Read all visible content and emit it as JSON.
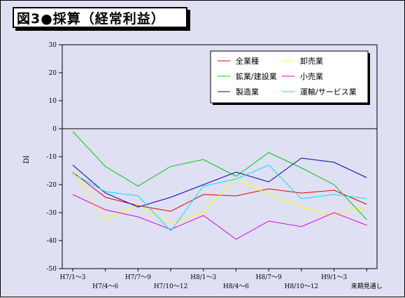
{
  "title": "図3●採算（経常利益）",
  "chart_data": {
    "type": "line",
    "ylabel": "DI",
    "ylim": [
      -50,
      30
    ],
    "yticks": [
      30,
      20,
      10,
      0,
      -10,
      -20,
      -30,
      -40,
      -50
    ],
    "categories": [
      "H7/1～3",
      "H7/4～6",
      "H7/7～9",
      "H7/10～12",
      "H8/1～3",
      "H8/4～6",
      "H8/7～9",
      "H8/10～12",
      "H9/1～3",
      "来期見通し"
    ],
    "legend_position": "top-right",
    "series": [
      {
        "name": "全業種",
        "color": "#e00000",
        "values": [
          -15.5,
          -24.5,
          -27.5,
          -29.5,
          -23.5,
          -24,
          -21.5,
          -23,
          -22,
          -27
        ]
      },
      {
        "name": "卸売業",
        "color": "#ffff00",
        "values": [
          -15,
          -32.5,
          -27,
          -34,
          -30,
          -18,
          -23.5,
          -28,
          -31,
          -28
        ]
      },
      {
        "name": "鉱業/建設業",
        "color": "#00c800",
        "values": [
          -1,
          -13.5,
          -20.5,
          -13.5,
          -11,
          -17,
          -8.5,
          -14,
          -20,
          -32.5
        ]
      },
      {
        "name": "小売業",
        "color": "#e000e0",
        "values": [
          -23.5,
          -29,
          -31.5,
          -36,
          -31,
          -39.5,
          -33,
          -35,
          -30,
          -34.5
        ]
      },
      {
        "name": "製造業",
        "color": "#0000b4",
        "values": [
          -13,
          -23,
          -28,
          -24.5,
          -20,
          -15.5,
          -19,
          -10.5,
          -12,
          -17.5
        ]
      },
      {
        "name": "運輸/サービス業",
        "color": "#00e0ff",
        "values": [
          -16,
          -22.5,
          -24,
          -36.5,
          -20.5,
          -18,
          -13,
          -25,
          -23.5,
          -25
        ]
      }
    ]
  }
}
